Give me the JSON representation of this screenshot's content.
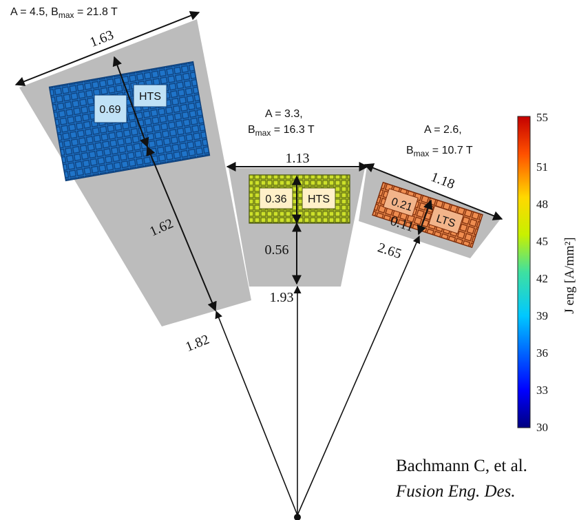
{
  "coils": [
    {
      "header_main": "A = 4.5, B",
      "header_sub": "max",
      "header_tail": " = 21.8 T",
      "width": "1.63",
      "conductor_thickness": "0.69",
      "material": "HTS",
      "radial_distance": "1.62",
      "inner_radius": "1.82"
    },
    {
      "header_line1": "A = 3.3,",
      "header_main": "B",
      "header_sub": "max",
      "header_tail": " = 16.3 T",
      "width": "1.13",
      "conductor_thickness": "0.36",
      "material": "HTS",
      "radial_distance": "0.56",
      "inner_radius": "1.93"
    },
    {
      "header_line1": "A = 2.6,",
      "header_main": "B",
      "header_sub": "max",
      "header_tail": " = 10.7 T",
      "width": "1.18",
      "conductor_thickness": "0.21",
      "material": "LTS",
      "radial_distance": "0.11",
      "inner_radius": "2.65"
    }
  ],
  "colorbar": {
    "label": "J eng [A/mm²]",
    "ticks": [
      "55",
      "51",
      "48",
      "45",
      "42",
      "39",
      "36",
      "33",
      "30"
    ],
    "min": 30,
    "max": 55
  },
  "citation": {
    "line1": "Bachmann C, et al.",
    "line2": "Fusion Eng. Des."
  },
  "colors": {
    "case_gray": "#bcbcbc",
    "hts_high_field": "#1f74c9",
    "hts_mid_field": "#cde02a",
    "lts_low_field": "#ef8d50"
  }
}
